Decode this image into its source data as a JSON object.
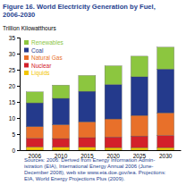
{
  "chart_data": {
    "type": "bar",
    "stacked": true,
    "title": [
      "Figure 16.  World Electricity Generation by Fuel,",
      "2006-2030"
    ],
    "y_label": "Trillion Kilowatthours",
    "categories": [
      "2006",
      "2010",
      "2015",
      "2020",
      "2025",
      "2030"
    ],
    "series": [
      {
        "name": "Liquids",
        "color": "#f2c500",
        "values": [
          1.0,
          0.9,
          0.9,
          0.8,
          0.8,
          0.8
        ]
      },
      {
        "name": "Nuclear",
        "color": "#d3202a",
        "values": [
          2.7,
          2.7,
          3.0,
          3.3,
          3.6,
          3.8
        ]
      },
      {
        "name": "Natural Gas",
        "color": "#e8702a",
        "values": [
          3.6,
          4.3,
          4.9,
          5.6,
          6.4,
          7.0
        ]
      },
      {
        "name": "Coal",
        "color": "#243a8c",
        "values": [
          7.4,
          8.2,
          9.5,
          10.7,
          12.0,
          13.6
        ]
      },
      {
        "name": "Renewables",
        "color": "#8cc63f",
        "values": [
          3.4,
          4.1,
          4.9,
          5.8,
          6.4,
          6.8
        ]
      }
    ],
    "ylim": [
      0,
      35
    ],
    "yticks": [
      0,
      5,
      10,
      15,
      20,
      25,
      30,
      35
    ],
    "legend": "upper left",
    "source": [
      "Sources: 2006: Derived from Energy Information Admin-",
      "istration (EIA), International Energy Annual 2006 (June-",
      "December 2008), web site www.eia.doe.gov/iea. Projections:",
      "EIA, World Energy Projections Plus (2009)."
    ]
  }
}
